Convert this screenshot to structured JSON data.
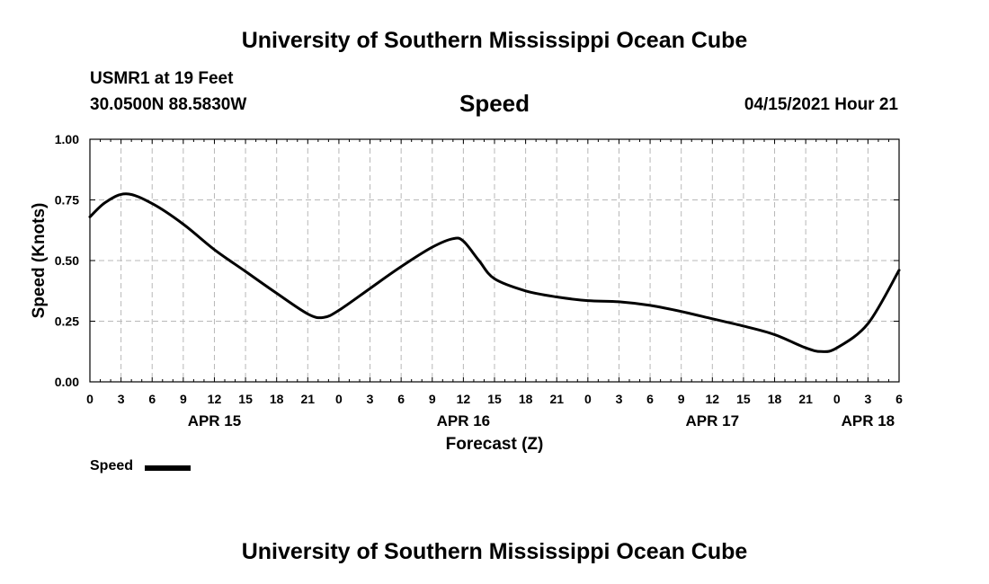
{
  "header": {
    "title": "University of Southern Mississippi Ocean Cube",
    "station": "USMR1 at 19 Feet",
    "coords": "30.0500N  88.5830W",
    "variable": "Speed",
    "datetime": "04/15/2021 Hour 21"
  },
  "footer": {
    "title": "University of Southern Mississippi Ocean Cube"
  },
  "legend": {
    "label": "Speed",
    "color": "#000000"
  },
  "chart_data": {
    "type": "line",
    "title": "Speed",
    "xlabel": "Forecast (Z)",
    "ylabel": "Speed (Knots)",
    "ylim": [
      0,
      1
    ],
    "xlim": [
      0,
      78
    ],
    "x_unit": "hours from APR 15 00Z",
    "grid": true,
    "yticks": [
      0,
      0.25,
      0.5,
      0.75,
      1.0
    ],
    "ytick_labels": [
      "0.00",
      "0.25",
      "0.50",
      "0.75",
      "1.00"
    ],
    "xticks": [
      0,
      3,
      6,
      9,
      12,
      15,
      18,
      21,
      24,
      27,
      30,
      33,
      36,
      39,
      42,
      45,
      48,
      51,
      54,
      57,
      60,
      63,
      66,
      69,
      72,
      75,
      78
    ],
    "xtick_labels": [
      "0",
      "3",
      "6",
      "9",
      "12",
      "15",
      "18",
      "21",
      "0",
      "3",
      "6",
      "9",
      "12",
      "15",
      "18",
      "21",
      "0",
      "3",
      "6",
      "9",
      "12",
      "15",
      "18",
      "21",
      "0",
      "3",
      "6"
    ],
    "date_labels": [
      {
        "x": 12,
        "label": "APR 15"
      },
      {
        "x": 36,
        "label": "APR 16"
      },
      {
        "x": 60,
        "label": "APR 17"
      },
      {
        "x": 75,
        "label": "APR 18"
      }
    ],
    "series": [
      {
        "name": "Speed",
        "color": "#000000",
        "x": [
          0,
          1.5,
          3.5,
          6,
          9,
          12,
          15,
          18,
          21,
          22.5,
          24,
          27,
          30,
          33,
          35,
          36,
          37.5,
          39,
          42,
          45,
          48,
          51,
          54,
          57,
          60,
          63,
          66,
          69,
          70.5,
          72,
          75,
          78
        ],
        "values": [
          0.68,
          0.74,
          0.775,
          0.735,
          0.65,
          0.545,
          0.455,
          0.365,
          0.28,
          0.265,
          0.295,
          0.385,
          0.475,
          0.555,
          0.59,
          0.58,
          0.5,
          0.425,
          0.375,
          0.35,
          0.335,
          0.33,
          0.315,
          0.29,
          0.26,
          0.23,
          0.195,
          0.14,
          0.125,
          0.14,
          0.24,
          0.46
        ]
      }
    ]
  }
}
